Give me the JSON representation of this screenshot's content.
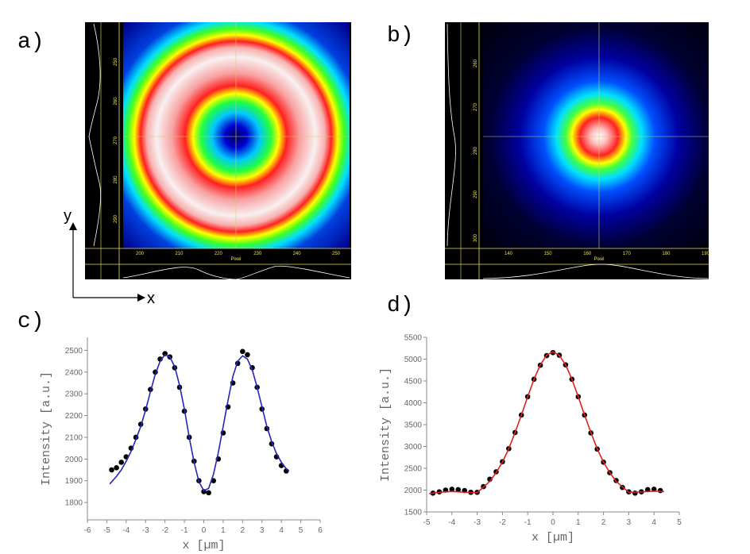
{
  "images": [
    {
      "panel_label": "a)",
      "x_axis_label": "Pixel",
      "xticks": [
        200,
        210,
        220,
        230,
        240,
        250
      ],
      "yticks": [
        250,
        260,
        270,
        280,
        290
      ]
    },
    {
      "panel_label": "b)",
      "x_axis_label": "Pixel",
      "xticks": [
        140,
        150,
        160,
        170,
        180,
        190
      ],
      "yticks": [
        260,
        270,
        280,
        290,
        300
      ]
    }
  ],
  "arrows": {
    "y": "y",
    "x": "x"
  },
  "chart_data": [
    {
      "type": "scatter",
      "panel_label": "c)",
      "xlabel": "x [µm]",
      "ylabel": "Intensity [a.u.]",
      "xlim": [
        -6,
        6
      ],
      "ylim": [
        1720,
        2560
      ],
      "xticks": [
        -6,
        -5,
        -4,
        -3,
        -2,
        -1,
        0,
        1,
        2,
        3,
        4,
        5,
        6
      ],
      "yticks": [
        1800,
        1900,
        2000,
        2100,
        2200,
        2300,
        2400,
        2500
      ],
      "series": [
        {
          "kind": "points",
          "color": "#000000",
          "x": [
            -4.75,
            -4.5,
            -4.25,
            -4,
            -3.75,
            -3.5,
            -3.25,
            -3,
            -2.75,
            -2.5,
            -2.25,
            -2,
            -1.75,
            -1.5,
            -1.25,
            -1,
            -0.75,
            -0.5,
            -0.25,
            0,
            0.25,
            0.5,
            0.75,
            1,
            1.25,
            1.5,
            1.75,
            2,
            2.25,
            2.5,
            2.75,
            3,
            3.25,
            3.5,
            3.75,
            4,
            4.25
          ],
          "values": [
            1950,
            1960,
            1985,
            2010,
            2050,
            2100,
            2160,
            2230,
            2320,
            2400,
            2460,
            2485,
            2470,
            2420,
            2330,
            2220,
            2100,
            1990,
            1900,
            1850,
            1845,
            1900,
            2000,
            2120,
            2240,
            2350,
            2440,
            2495,
            2480,
            2420,
            2330,
            2230,
            2140,
            2070,
            2010,
            1970,
            1945
          ]
        },
        {
          "kind": "line",
          "color": "#2626b4",
          "x": [
            -4.85,
            -4.5,
            -4.25,
            -4,
            -3.75,
            -3.5,
            -3.25,
            -3,
            -2.75,
            -2.5,
            -2.25,
            -2,
            -1.75,
            -1.5,
            -1.25,
            -1,
            -0.75,
            -0.5,
            -0.25,
            0,
            0.25,
            0.5,
            0.75,
            1,
            1.25,
            1.5,
            1.75,
            2,
            2.25,
            2.5,
            2.75,
            3,
            3.25,
            3.5,
            3.75,
            4,
            4.25,
            4.4
          ],
          "values": [
            1885,
            1920,
            1950,
            1990,
            2035,
            2090,
            2150,
            2225,
            2310,
            2390,
            2450,
            2480,
            2470,
            2425,
            2340,
            2230,
            2100,
            1985,
            1895,
            1855,
            1865,
            1930,
            2030,
            2150,
            2270,
            2380,
            2450,
            2475,
            2460,
            2410,
            2330,
            2240,
            2150,
            2080,
            2025,
            1985,
            1955,
            1945
          ]
        }
      ]
    },
    {
      "type": "scatter",
      "panel_label": "d)",
      "xlabel": "x [µm]",
      "ylabel": "Intensity [a.u.]",
      "xlim": [
        -5,
        5
      ],
      "ylim": [
        1500,
        5500
      ],
      "xticks": [
        -5,
        -4,
        -3,
        -2,
        -1,
        0,
        1,
        2,
        3,
        4,
        5
      ],
      "yticks": [
        1500,
        2000,
        2500,
        3000,
        3500,
        4000,
        4500,
        5000,
        5500
      ],
      "series": [
        {
          "kind": "points",
          "color": "#000000",
          "x": [
            -4.75,
            -4.5,
            -4.25,
            -4,
            -3.75,
            -3.5,
            -3.25,
            -3,
            -2.75,
            -2.5,
            -2.25,
            -2,
            -1.75,
            -1.5,
            -1.25,
            -1,
            -0.75,
            -0.5,
            -0.25,
            0,
            0.25,
            0.5,
            0.75,
            1,
            1.25,
            1.5,
            1.75,
            2,
            2.25,
            2.5,
            2.75,
            3,
            3.25,
            3.5,
            3.75,
            4,
            4.25
          ],
          "values": [
            1930,
            1960,
            2000,
            2020,
            2010,
            1990,
            1950,
            1950,
            2080,
            2250,
            2420,
            2650,
            2950,
            3320,
            3720,
            4140,
            4540,
            4860,
            5080,
            5150,
            5090,
            4870,
            4540,
            4140,
            3720,
            3310,
            2940,
            2640,
            2400,
            2220,
            2060,
            1960,
            1930,
            1960,
            2010,
            2020,
            1990
          ]
        },
        {
          "kind": "line",
          "color": "#e02020",
          "x": [
            -4.9,
            -4.5,
            -4,
            -3.5,
            -3,
            -2.5,
            -2.25,
            -2,
            -1.75,
            -1.5,
            -1.25,
            -1,
            -0.75,
            -0.5,
            -0.25,
            0,
            0.25,
            0.5,
            0.75,
            1,
            1.25,
            1.5,
            1.75,
            2,
            2.25,
            2.5,
            3,
            3.5,
            4,
            4.4
          ],
          "values": [
            1920,
            1950,
            1970,
            1950,
            1940,
            2200,
            2400,
            2640,
            2950,
            3320,
            3720,
            4140,
            4540,
            4870,
            5090,
            5170,
            5090,
            4870,
            4540,
            4140,
            3720,
            3320,
            2950,
            2640,
            2400,
            2200,
            1950,
            1960,
            1975,
            1965
          ]
        }
      ]
    }
  ]
}
